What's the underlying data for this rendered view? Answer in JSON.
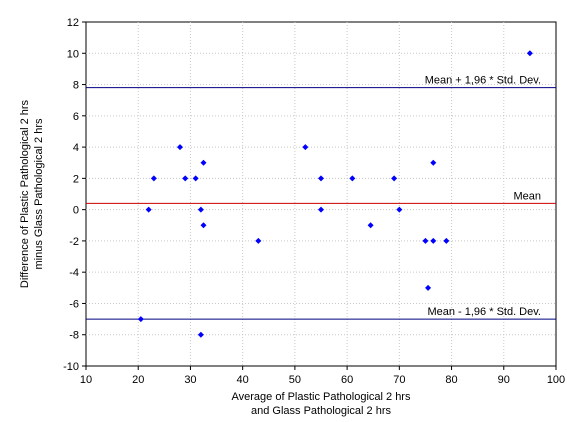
{
  "chart_data": {
    "type": "scatter",
    "title": "",
    "xlabel": [
      "Average of Plastic Pathological 2 hrs",
      "and Glass Pathological 2 hrs"
    ],
    "ylabel": [
      "Difference of Plastic Pathological 2 hrs",
      "minus Glass Pathological 2 hrs"
    ],
    "xlim": [
      10,
      100
    ],
    "ylim": [
      -10,
      12
    ],
    "xticks": [
      10,
      20,
      30,
      40,
      50,
      60,
      70,
      80,
      90,
      100
    ],
    "yticks": [
      -10,
      -8,
      -6,
      -4,
      -2,
      0,
      2,
      4,
      6,
      8,
      10,
      12
    ],
    "grid": true,
    "point_color": "#0000ff",
    "points": [
      {
        "x": 20.5,
        "y": -7
      },
      {
        "x": 22,
        "y": 0
      },
      {
        "x": 23,
        "y": 2
      },
      {
        "x": 28,
        "y": 4
      },
      {
        "x": 29,
        "y": 2
      },
      {
        "x": 31,
        "y": 2
      },
      {
        "x": 32,
        "y": 0
      },
      {
        "x": 32.5,
        "y": 3
      },
      {
        "x": 32.5,
        "y": -1
      },
      {
        "x": 32,
        "y": -8
      },
      {
        "x": 43,
        "y": -2
      },
      {
        "x": 52,
        "y": 4
      },
      {
        "x": 55,
        "y": 2
      },
      {
        "x": 55,
        "y": 0
      },
      {
        "x": 61,
        "y": 2
      },
      {
        "x": 64.5,
        "y": -1
      },
      {
        "x": 69,
        "y": 2
      },
      {
        "x": 70,
        "y": 0
      },
      {
        "x": 75,
        "y": -2
      },
      {
        "x": 75.5,
        "y": -5
      },
      {
        "x": 76.5,
        "y": 3
      },
      {
        "x": 76.5,
        "y": -2
      },
      {
        "x": 79,
        "y": -2
      },
      {
        "x": 95,
        "y": 10
      }
    ],
    "reference_lines": [
      {
        "label": "Mean + 1,96 * Std. Dev.",
        "y": 7.8,
        "color": "#000080"
      },
      {
        "label": "Mean",
        "y": 0.4,
        "color": "#cc0000"
      },
      {
        "label": "Mean - 1,96 * Std. Dev.",
        "y": -7,
        "color": "#000080"
      }
    ]
  }
}
